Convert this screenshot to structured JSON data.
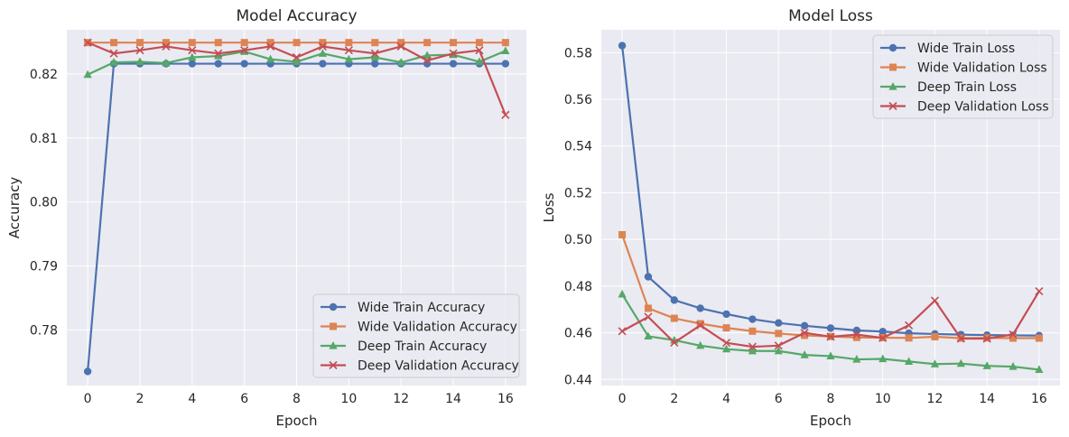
{
  "chart_data": [
    {
      "type": "line",
      "title": "Model Accuracy",
      "xlabel": "Epoch",
      "ylabel": "Accuracy",
      "xlim": [
        -0.8,
        16.8
      ],
      "ylim": [
        0.7713,
        0.8269
      ],
      "xticks": [
        0,
        2,
        4,
        6,
        8,
        10,
        12,
        14,
        16
      ],
      "yticks": [
        0.78,
        0.79,
        0.8,
        0.81,
        0.82
      ],
      "ytick_labels": [
        "0.78",
        "0.79",
        "0.80",
        "0.81",
        "0.82"
      ],
      "grid": true,
      "legend_position": "lower right",
      "x": [
        0,
        1,
        2,
        3,
        4,
        5,
        6,
        7,
        8,
        9,
        10,
        11,
        12,
        13,
        14,
        15,
        16
      ],
      "series": [
        {
          "name": "Wide Train Accuracy",
          "color": "#4c72b0",
          "marker": "circle",
          "values": [
            0.7735,
            0.8216,
            0.8216,
            0.8216,
            0.8216,
            0.8216,
            0.8216,
            0.8216,
            0.8216,
            0.8216,
            0.8216,
            0.8216,
            0.8216,
            0.8216,
            0.8216,
            0.8216,
            0.8216
          ]
        },
        {
          "name": "Wide Validation Accuracy",
          "color": "#dd8452",
          "marker": "square",
          "values": [
            0.8249,
            0.8249,
            0.8249,
            0.8249,
            0.8249,
            0.8249,
            0.8249,
            0.8249,
            0.8249,
            0.8249,
            0.8249,
            0.8249,
            0.8249,
            0.8249,
            0.8249,
            0.8249,
            0.8249
          ]
        },
        {
          "name": "Deep Train Accuracy",
          "color": "#55a868",
          "marker": "triangle",
          "values": [
            0.8199,
            0.8218,
            0.8219,
            0.8217,
            0.8226,
            0.8228,
            0.8235,
            0.8223,
            0.8219,
            0.8232,
            0.8223,
            0.8226,
            0.8218,
            0.8229,
            0.823,
            0.8219,
            0.8236
          ]
        },
        {
          "name": "Deep Validation Accuracy",
          "color": "#c44e52",
          "marker": "x",
          "values": [
            0.8249,
            0.8232,
            0.8237,
            0.8243,
            0.8237,
            0.8232,
            0.8237,
            0.8243,
            0.8226,
            0.8243,
            0.8237,
            0.8232,
            0.8243,
            0.8221,
            0.8232,
            0.8237,
            0.8136
          ]
        }
      ]
    },
    {
      "type": "line",
      "title": "Model Loss",
      "xlabel": "Epoch",
      "ylabel": "Loss",
      "xlim": [
        -0.8,
        16.8
      ],
      "ylim": [
        0.4374,
        0.5898
      ],
      "xticks": [
        0,
        2,
        4,
        6,
        8,
        10,
        12,
        14,
        16
      ],
      "yticks": [
        0.44,
        0.46,
        0.48,
        0.5,
        0.52,
        0.54,
        0.56,
        0.58
      ],
      "ytick_labels": [
        "0.44",
        "0.46",
        "0.48",
        "0.50",
        "0.52",
        "0.54",
        "0.56",
        "0.58"
      ],
      "grid": true,
      "legend_position": "upper right",
      "x": [
        0,
        1,
        2,
        3,
        4,
        5,
        6,
        7,
        8,
        9,
        10,
        11,
        12,
        13,
        14,
        15,
        16
      ],
      "series": [
        {
          "name": "Wide Train Loss",
          "color": "#4c72b0",
          "marker": "circle",
          "values": [
            0.583,
            0.484,
            0.474,
            0.4705,
            0.468,
            0.4658,
            0.4642,
            0.463,
            0.462,
            0.461,
            0.4605,
            0.4598,
            0.4595,
            0.4592,
            0.459,
            0.4589,
            0.4588
          ]
        },
        {
          "name": "Wide Validation Loss",
          "color": "#dd8452",
          "marker": "square",
          "values": [
            0.502,
            0.4705,
            0.4662,
            0.4639,
            0.4621,
            0.4607,
            0.4597,
            0.4589,
            0.4584,
            0.458,
            0.4579,
            0.4578,
            0.4583,
            0.4577,
            0.4578,
            0.4577,
            0.4577
          ]
        },
        {
          "name": "Deep Train Loss",
          "color": "#55a868",
          "marker": "triangle",
          "values": [
            0.4765,
            0.4585,
            0.4568,
            0.4545,
            0.453,
            0.4522,
            0.4522,
            0.4505,
            0.45,
            0.4486,
            0.4488,
            0.4477,
            0.4466,
            0.4468,
            0.4458,
            0.4455,
            0.4442
          ]
        },
        {
          "name": "Deep Validation Loss",
          "color": "#c44e52",
          "marker": "x",
          "values": [
            0.4607,
            0.4668,
            0.4558,
            0.4632,
            0.4557,
            0.454,
            0.4545,
            0.46,
            0.4583,
            0.4592,
            0.4578,
            0.4632,
            0.4738,
            0.4575,
            0.4575,
            0.4593,
            0.4778
          ]
        }
      ]
    }
  ]
}
